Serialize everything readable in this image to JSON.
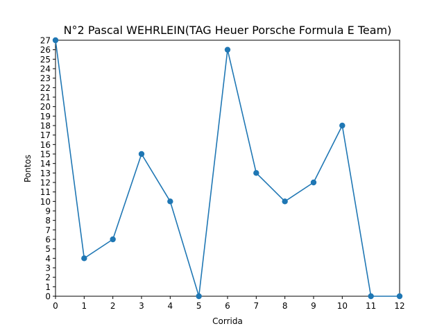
{
  "chart_data": {
    "type": "line",
    "title": "N°2 Pascal WEHRLEIN(TAG Heuer Porsche Formula E Team)",
    "xlabel": "Corrida",
    "ylabel": "Pontos",
    "x": [
      0,
      1,
      2,
      3,
      4,
      5,
      6,
      7,
      8,
      9,
      10,
      11,
      12
    ],
    "series": [
      {
        "name": "Pontos",
        "values": [
          27,
          4,
          6,
          15,
          10,
          0,
          26,
          13,
          10,
          12,
          18,
          0,
          0
        ],
        "color": "#1f77b4",
        "marker": "circle"
      }
    ],
    "xlim": [
      0,
      12
    ],
    "ylim": [
      0,
      27
    ],
    "xticks": [
      0,
      1,
      2,
      3,
      4,
      5,
      6,
      7,
      8,
      9,
      10,
      11,
      12
    ],
    "yticks": [
      0,
      1,
      2,
      3,
      4,
      5,
      6,
      7,
      8,
      9,
      10,
      11,
      12,
      13,
      14,
      15,
      16,
      17,
      18,
      19,
      20,
      21,
      22,
      23,
      24,
      25,
      26,
      27
    ],
    "grid": false,
    "legend": "none"
  }
}
